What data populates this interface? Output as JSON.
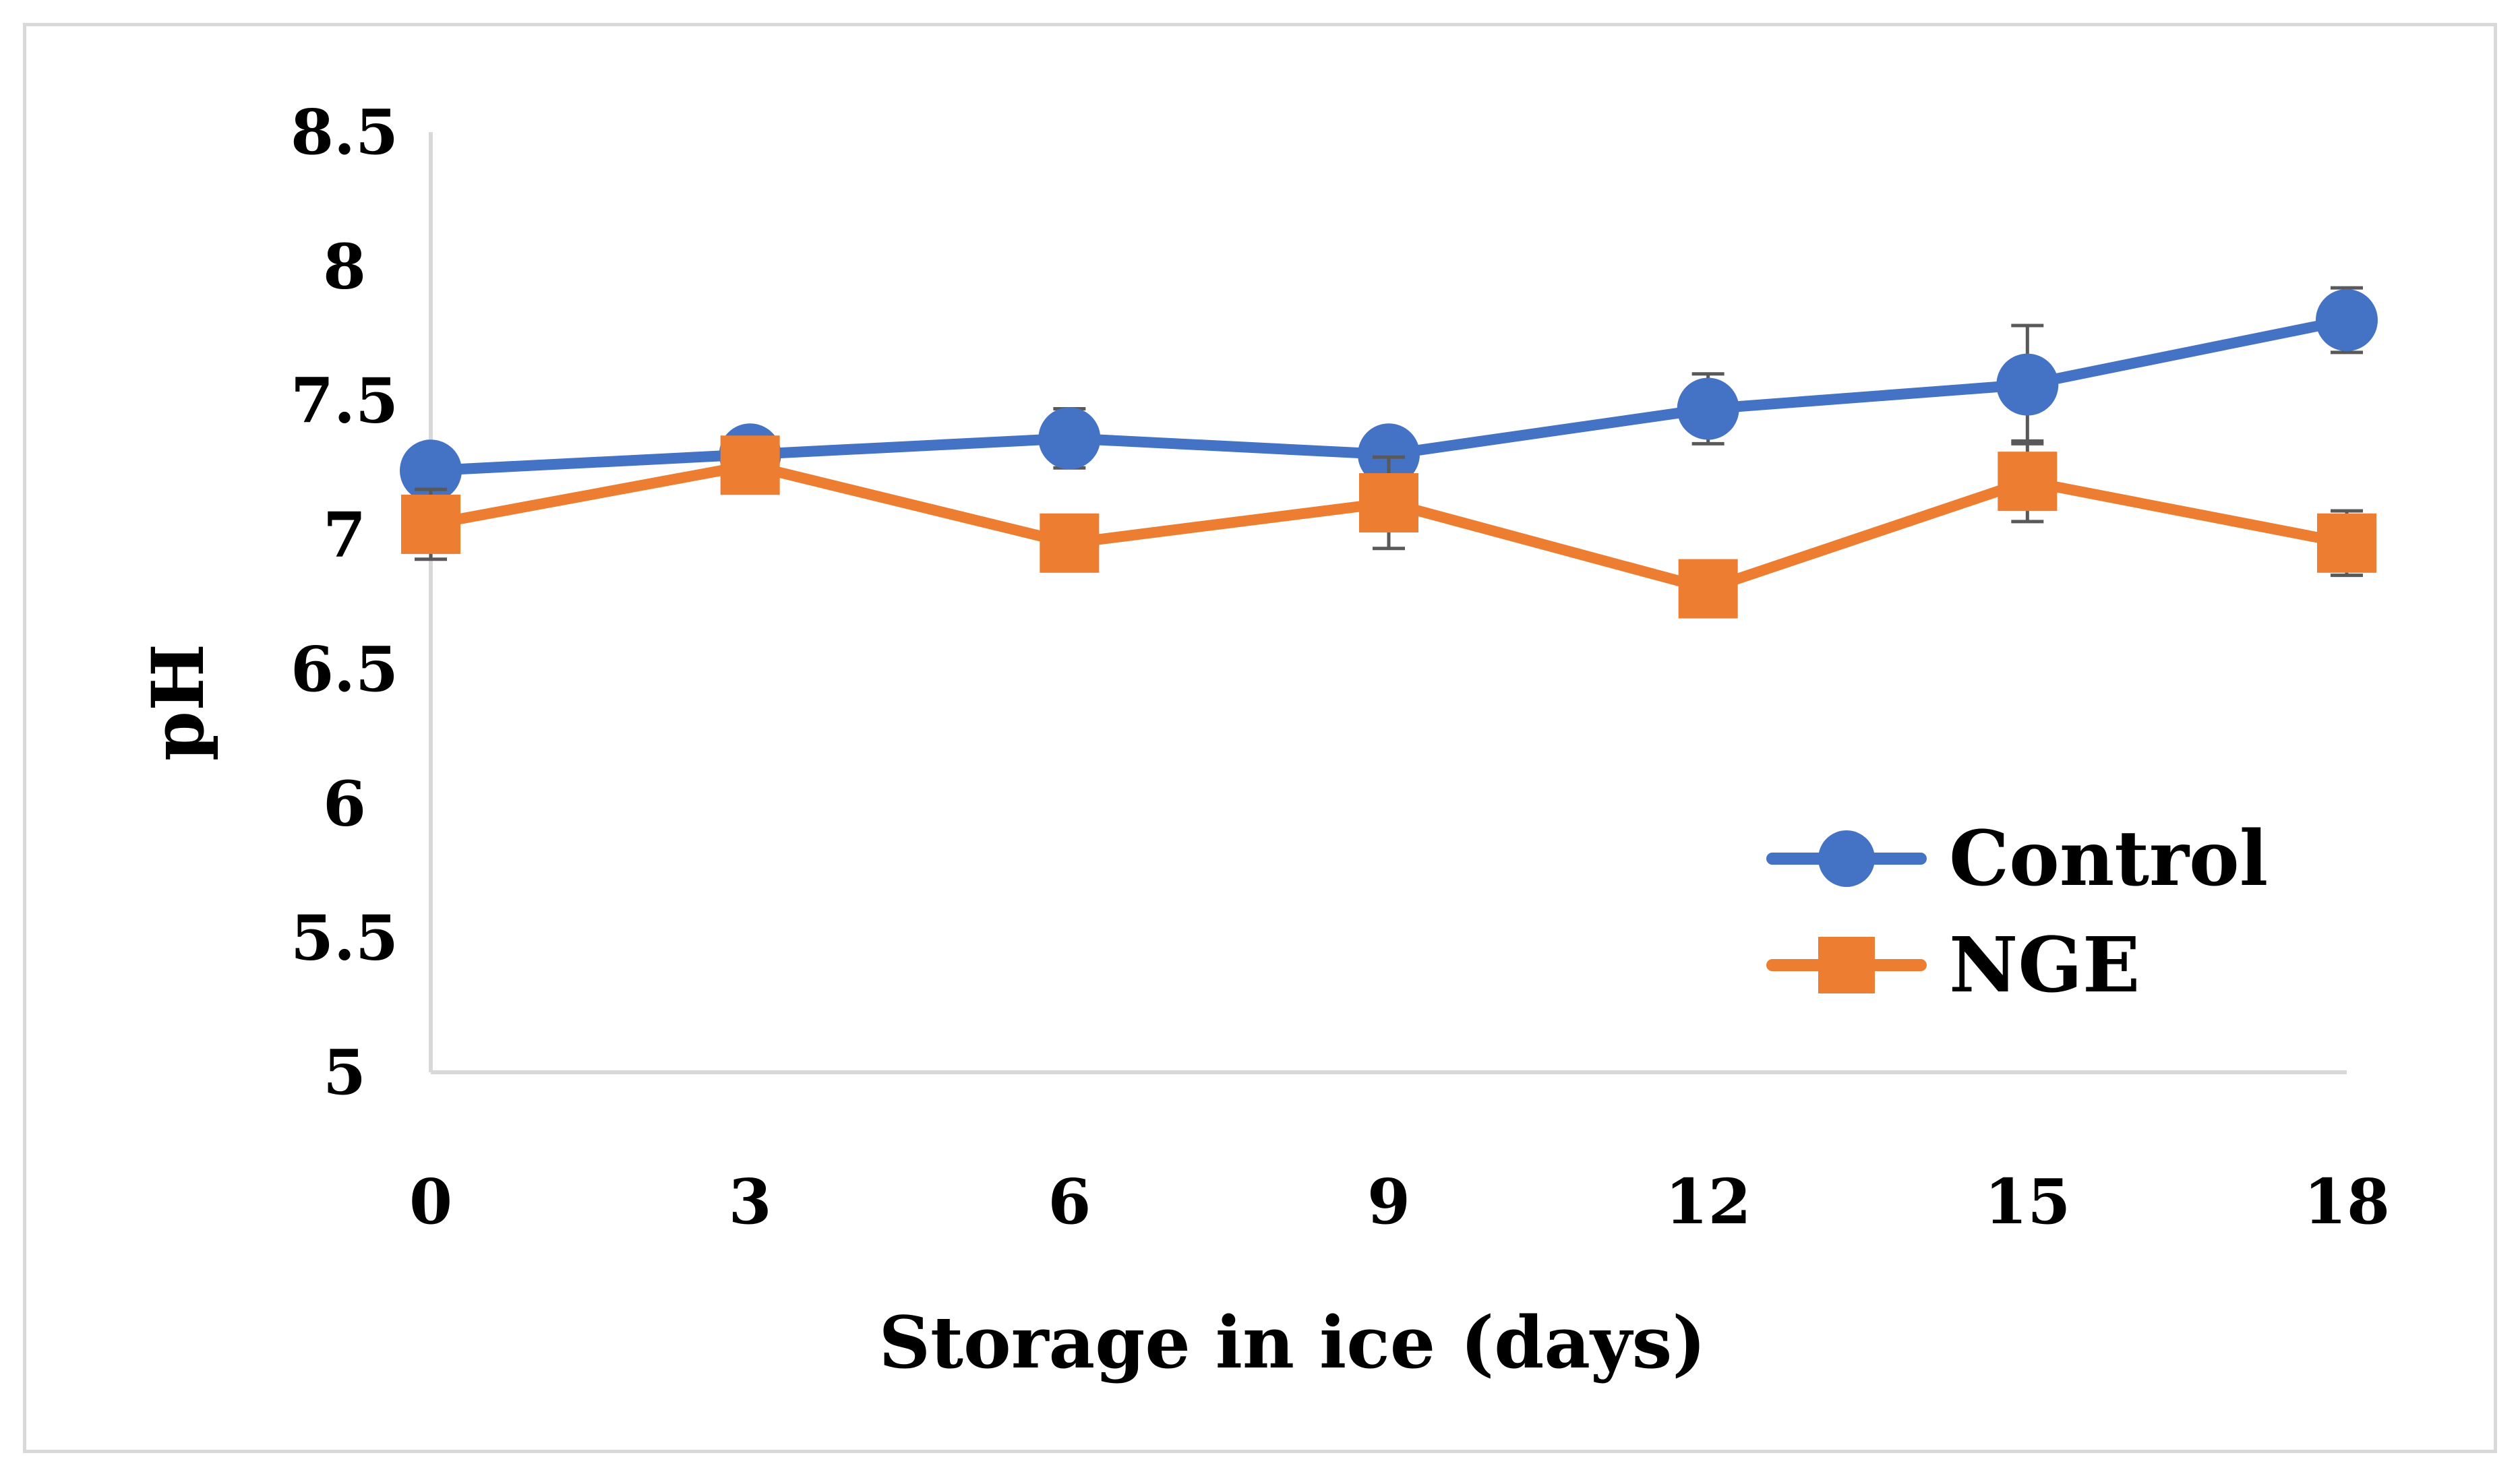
{
  "chart_data": {
    "type": "line",
    "title": "",
    "xlabel": "Storage in ice (days)",
    "ylabel": "pH",
    "categories": [
      "0",
      "3",
      "6",
      "9",
      "12",
      "15",
      "18"
    ],
    "x": [
      0,
      3,
      6,
      9,
      12,
      15,
      18
    ],
    "ylim": [
      5,
      8.5
    ],
    "yticks": [
      5,
      5.5,
      6,
      6.5,
      7,
      7.5,
      8,
      8.5
    ],
    "ytick_labels": [
      "5",
      "5.5",
      "6",
      "6.5",
      "7",
      "7.5",
      "8",
      "8.5"
    ],
    "grid": false,
    "legend_position": "bottom-right",
    "series": [
      {
        "name": "Control",
        "color": "#4472c4",
        "marker": "circle",
        "values": [
          7.24,
          7.3,
          7.36,
          7.3,
          7.47,
          7.56,
          7.8
        ],
        "errors": [
          0.02,
          0.02,
          0.11,
          0.02,
          0.13,
          0.22,
          0.12
        ]
      },
      {
        "name": "NGE",
        "color": "#ed7d31",
        "marker": "square",
        "values": [
          7.04,
          7.26,
          6.97,
          7.12,
          6.8,
          7.2,
          6.97
        ],
        "errors": [
          0.13,
          0.03,
          0.03,
          0.17,
          0.03,
          0.15,
          0.12
        ]
      }
    ]
  }
}
